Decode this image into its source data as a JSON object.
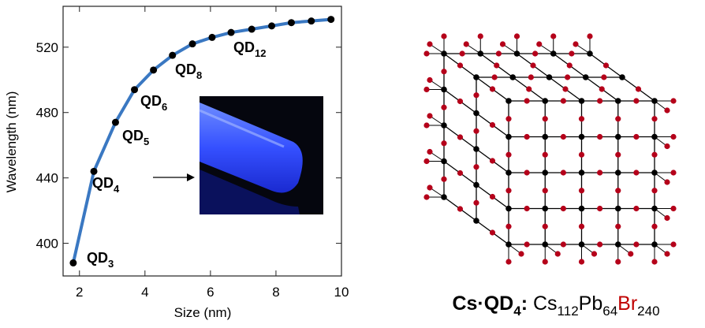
{
  "chart_data": {
    "type": "line",
    "x_label": "Size (nm)",
    "y_label": "Wavelength (nm)",
    "x": [
      1.81,
      2.44,
      3.1,
      3.68,
      4.26,
      4.84,
      5.45,
      6.05,
      6.63,
      7.26,
      7.87,
      8.47,
      9.08,
      9.68
    ],
    "series": [
      {
        "color": "#3a78c2",
        "marker_color": "#000000",
        "values": [
          388,
          444,
          474,
          494,
          506,
          515,
          522,
          526,
          529,
          531,
          533,
          535,
          536,
          537
        ]
      }
    ],
    "xlim": [
      1.5,
      10
    ],
    "ylim": [
      380,
      545
    ],
    "xticks": [
      2,
      4,
      6,
      8,
      10
    ],
    "yticks": [
      400,
      440,
      480,
      520
    ],
    "annotations": [
      {
        "text": "QD",
        "sub": "3"
      },
      {
        "text": "QD",
        "sub": "4"
      },
      {
        "text": "QD",
        "sub": "5"
      },
      {
        "text": "QD",
        "sub": "6"
      },
      {
        "text": "QD",
        "sub": "8"
      },
      {
        "text": "QD",
        "sub": "12"
      }
    ]
  },
  "diagram": {
    "caption": [
      {
        "text": "Cs·QD",
        "bold": true,
        "sub": false,
        "color": "#000000"
      },
      {
        "text": "4",
        "bold": true,
        "sub": true,
        "color": "#000000"
      },
      {
        "text": ": ",
        "bold": true,
        "sub": false,
        "color": "#000000"
      },
      {
        "text": "Cs",
        "bold": false,
        "sub": false,
        "color": "#000000"
      },
      {
        "text": "112",
        "bold": false,
        "sub": true,
        "color": "#000000"
      },
      {
        "text": "Pb",
        "bold": false,
        "sub": false,
        "color": "#000000"
      },
      {
        "text": "64",
        "bold": false,
        "sub": true,
        "color": "#000000"
      },
      {
        "text": "Br",
        "bold": false,
        "sub": false,
        "color": "#c00000"
      },
      {
        "text": "240",
        "bold": false,
        "sub": true,
        "color": "#000000"
      }
    ]
  }
}
